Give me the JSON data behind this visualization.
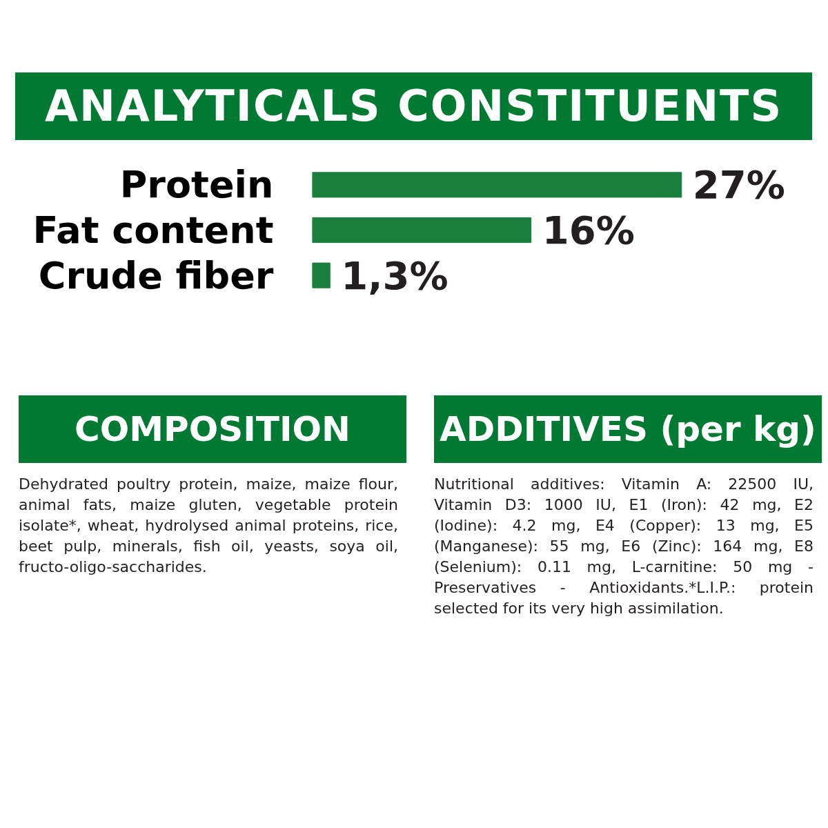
{
  "chart_data": {
    "type": "bar",
    "orientation": "horizontal",
    "title": "ANALYTICALS CONSTITUENTS",
    "categories": [
      "Protein",
      "Fat content",
      "Crude fiber"
    ],
    "values": [
      27,
      16,
      1.3
    ],
    "value_labels": [
      "27%",
      "16%",
      "1,3%"
    ],
    "color": "#1a7f3c",
    "tick_labels": "y",
    "grid": false,
    "annotations": [
      "COMPOSITION",
      "Dehydrated poultry protein, maize, maize flour, animal fats, maize gluten, vegetable protein isolate*, wheat, hydrolysed animal proteins, rice, beet pulp, minerals, fish oil, yeasts, soya oil, fructo-oligo-saccharides.",
      "ADDITIVES (per kg)",
      "Nutritional additives: Vitamin A: 22500 IU, Vitamin D3: 1000 IU, E1 (Iron): 42 mg, E2 (Iodine): 4.2 mg, E4 (Copper): 13 mg, E5 (Manganese): 55 mg, E6 (Zinc): 164 mg, E8 (Selenium): 0.11 mg, L-carnitine: 50 mg - Preservatives - Antioxidants.*L.I.P.: protein selected for its very high assimilation."
    ]
  }
}
